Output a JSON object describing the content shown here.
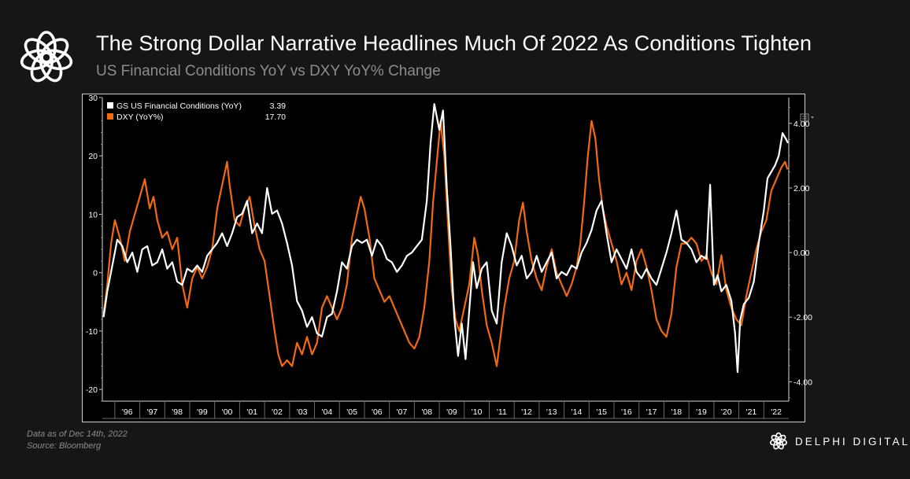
{
  "header": {
    "title": "The Strong Dollar Narrative Headlines Much Of 2022 As Conditions Tighten",
    "subtitle": "US Financial Conditions YoY vs DXY YoY% Change"
  },
  "footer": {
    "data_note": "Data as of Dec 14th, 2022",
    "source": "Source: Bloomberg",
    "brand": "DELPHI DIGITAL"
  },
  "icons": {
    "logo": "delphi-knot-logo-icon",
    "brand": "delphi-knot-logo-icon",
    "menu": "chart-menu-icon"
  },
  "colors": {
    "background": "#161616",
    "plot_background": "#000000",
    "fci": "#ffffff",
    "dxy": "#f26a10"
  },
  "chart_data": {
    "type": "line",
    "x_ticks": [
      "'96",
      "'97",
      "'98",
      "'99",
      "'00",
      "'01",
      "'02",
      "'03",
      "'04",
      "'05",
      "'06",
      "'07",
      "'08",
      "'09",
      "'10",
      "'11",
      "'12",
      "'13",
      "'14",
      "'15",
      "'16",
      "'17",
      "'18",
      "'19",
      "'20",
      "'21",
      "'22"
    ],
    "x_range": [
      1995.5,
      2023.0
    ],
    "y_left": {
      "ticks": [
        30,
        20,
        10,
        0,
        -10,
        -20
      ],
      "range": [
        -22,
        30
      ]
    },
    "y_right": {
      "ticks": [
        "4.00",
        "2.00",
        "0.00",
        "-2.00",
        "-4.00"
      ],
      "tick_values": [
        4,
        2,
        0,
        -2,
        -4
      ],
      "range": [
        -4.6,
        4.8
      ]
    },
    "legend": {
      "placement": "top-left",
      "entries": [
        {
          "label": "GS US Financial Conditions (YoY)",
          "value": "3.39",
          "color": "#ffffff"
        },
        {
          "label": "DXY (YoY%)",
          "value": "17.70",
          "color": "#f26a10"
        }
      ]
    },
    "series": [
      {
        "name": "DXY (YoY%)",
        "axis": "left",
        "color": "#f26a10",
        "points": [
          [
            1995.55,
            -7
          ],
          [
            1995.7,
            -2
          ],
          [
            1995.85,
            5
          ],
          [
            1996.0,
            9
          ],
          [
            1996.2,
            6
          ],
          [
            1996.4,
            2
          ],
          [
            1996.6,
            7
          ],
          [
            1996.8,
            10
          ],
          [
            1997.0,
            13
          ],
          [
            1997.2,
            16
          ],
          [
            1997.4,
            11
          ],
          [
            1997.55,
            13
          ],
          [
            1997.7,
            9
          ],
          [
            1997.9,
            6
          ],
          [
            1998.1,
            7
          ],
          [
            1998.3,
            4
          ],
          [
            1998.5,
            6
          ],
          [
            1998.7,
            -2
          ],
          [
            1998.9,
            -6
          ],
          [
            1999.1,
            -1
          ],
          [
            1999.3,
            1
          ],
          [
            1999.5,
            -1
          ],
          [
            1999.7,
            1
          ],
          [
            1999.9,
            4
          ],
          [
            2000.1,
            11
          ],
          [
            2000.3,
            15
          ],
          [
            2000.5,
            19
          ],
          [
            2000.6,
            15
          ],
          [
            2000.8,
            9
          ],
          [
            2001.0,
            8
          ],
          [
            2001.2,
            11
          ],
          [
            2001.4,
            13
          ],
          [
            2001.6,
            8
          ],
          [
            2001.8,
            4
          ],
          [
            2002.0,
            2
          ],
          [
            2002.2,
            -4
          ],
          [
            2002.4,
            -10
          ],
          [
            2002.55,
            -14
          ],
          [
            2002.7,
            -16
          ],
          [
            2002.9,
            -15
          ],
          [
            2003.1,
            -16
          ],
          [
            2003.3,
            -12
          ],
          [
            2003.5,
            -14
          ],
          [
            2003.7,
            -11
          ],
          [
            2003.9,
            -14
          ],
          [
            2004.1,
            -12
          ],
          [
            2004.3,
            -6
          ],
          [
            2004.5,
            -4
          ],
          [
            2004.7,
            -6
          ],
          [
            2004.9,
            -8
          ],
          [
            2005.1,
            -6
          ],
          [
            2005.3,
            -2
          ],
          [
            2005.5,
            6
          ],
          [
            2005.7,
            10
          ],
          [
            2005.85,
            13
          ],
          [
            2006.0,
            11
          ],
          [
            2006.2,
            6
          ],
          [
            2006.4,
            -1
          ],
          [
            2006.6,
            -3
          ],
          [
            2006.8,
            -5
          ],
          [
            2007.0,
            -4
          ],
          [
            2007.2,
            -6
          ],
          [
            2007.4,
            -8
          ],
          [
            2007.6,
            -10
          ],
          [
            2007.8,
            -12
          ],
          [
            2008.0,
            -13
          ],
          [
            2008.2,
            -11
          ],
          [
            2008.4,
            -6
          ],
          [
            2008.6,
            2
          ],
          [
            2008.75,
            12
          ],
          [
            2008.9,
            19
          ],
          [
            2009.05,
            26
          ],
          [
            2009.2,
            20
          ],
          [
            2009.35,
            8
          ],
          [
            2009.5,
            -3
          ],
          [
            2009.65,
            -8
          ],
          [
            2009.8,
            -10
          ],
          [
            2010.0,
            -6
          ],
          [
            2010.2,
            -2
          ],
          [
            2010.4,
            6
          ],
          [
            2010.55,
            3
          ],
          [
            2010.7,
            -3
          ],
          [
            2010.9,
            -9
          ],
          [
            2011.1,
            -12
          ],
          [
            2011.3,
            -16
          ],
          [
            2011.45,
            -11
          ],
          [
            2011.6,
            -6
          ],
          [
            2011.8,
            -1
          ],
          [
            2012.0,
            2
          ],
          [
            2012.2,
            9
          ],
          [
            2012.35,
            12
          ],
          [
            2012.5,
            7
          ],
          [
            2012.7,
            2
          ],
          [
            2012.9,
            -1
          ],
          [
            2013.1,
            -3
          ],
          [
            2013.3,
            1
          ],
          [
            2013.5,
            4
          ],
          [
            2013.7,
            0
          ],
          [
            2013.9,
            -2
          ],
          [
            2014.1,
            -4
          ],
          [
            2014.3,
            -2
          ],
          [
            2014.5,
            1
          ],
          [
            2014.65,
            5
          ],
          [
            2014.8,
            12
          ],
          [
            2014.95,
            20
          ],
          [
            2015.1,
            26
          ],
          [
            2015.25,
            23
          ],
          [
            2015.4,
            16
          ],
          [
            2015.55,
            11
          ],
          [
            2015.7,
            8
          ],
          [
            2015.9,
            5
          ],
          [
            2016.1,
            2
          ],
          [
            2016.3,
            -2
          ],
          [
            2016.5,
            0
          ],
          [
            2016.7,
            -3
          ],
          [
            2016.9,
            2
          ],
          [
            2017.1,
            4
          ],
          [
            2017.3,
            1
          ],
          [
            2017.5,
            -3
          ],
          [
            2017.7,
            -8
          ],
          [
            2017.9,
            -10
          ],
          [
            2018.1,
            -11
          ],
          [
            2018.3,
            -7
          ],
          [
            2018.5,
            1
          ],
          [
            2018.7,
            5
          ],
          [
            2018.9,
            5
          ],
          [
            2019.1,
            6
          ],
          [
            2019.3,
            5
          ],
          [
            2019.5,
            2
          ],
          [
            2019.7,
            3
          ],
          [
            2019.9,
            0
          ],
          [
            2020.1,
            -2
          ],
          [
            2020.3,
            3
          ],
          [
            2020.5,
            -3
          ],
          [
            2020.7,
            -6
          ],
          [
            2020.9,
            -8
          ],
          [
            2021.1,
            -9
          ],
          [
            2021.3,
            -4
          ],
          [
            2021.5,
            0
          ],
          [
            2021.7,
            4
          ],
          [
            2021.9,
            7
          ],
          [
            2022.1,
            9
          ],
          [
            2022.3,
            14
          ],
          [
            2022.5,
            16
          ],
          [
            2022.7,
            18
          ],
          [
            2022.85,
            19
          ],
          [
            2022.95,
            17.7
          ]
        ]
      },
      {
        "name": "GS US Financial Conditions (YoY)",
        "axis": "right",
        "color": "#ffffff",
        "points": [
          [
            1995.55,
            -2.0
          ],
          [
            1995.7,
            -1.2
          ],
          [
            1995.9,
            -0.4
          ],
          [
            1996.1,
            0.4
          ],
          [
            1996.3,
            0.2
          ],
          [
            1996.5,
            -0.3
          ],
          [
            1996.7,
            0.0
          ],
          [
            1996.9,
            -0.6
          ],
          [
            1997.1,
            0.1
          ],
          [
            1997.3,
            0.2
          ],
          [
            1997.5,
            -0.4
          ],
          [
            1997.7,
            -0.3
          ],
          [
            1997.9,
            0.1
          ],
          [
            1998.1,
            -0.5
          ],
          [
            1998.3,
            -0.3
          ],
          [
            1998.5,
            -0.9
          ],
          [
            1998.7,
            -1.0
          ],
          [
            1998.9,
            -0.5
          ],
          [
            1999.1,
            -0.6
          ],
          [
            1999.3,
            -0.4
          ],
          [
            1999.5,
            -0.6
          ],
          [
            1999.7,
            -0.1
          ],
          [
            1999.9,
            0.1
          ],
          [
            2000.1,
            0.3
          ],
          [
            2000.3,
            0.6
          ],
          [
            2000.5,
            0.2
          ],
          [
            2000.7,
            0.6
          ],
          [
            2000.9,
            1.1
          ],
          [
            2001.1,
            1.2
          ],
          [
            2001.3,
            1.6
          ],
          [
            2001.5,
            0.6
          ],
          [
            2001.7,
            0.9
          ],
          [
            2001.9,
            0.6
          ],
          [
            2002.1,
            2.0
          ],
          [
            2002.3,
            1.2
          ],
          [
            2002.5,
            1.3
          ],
          [
            2002.7,
            0.9
          ],
          [
            2002.9,
            0.3
          ],
          [
            2003.1,
            -0.4
          ],
          [
            2003.3,
            -1.5
          ],
          [
            2003.5,
            -1.8
          ],
          [
            2003.7,
            -2.3
          ],
          [
            2003.9,
            -2.0
          ],
          [
            2004.1,
            -2.5
          ],
          [
            2004.3,
            -2.6
          ],
          [
            2004.5,
            -2.0
          ],
          [
            2004.7,
            -1.9
          ],
          [
            2004.9,
            -1.2
          ],
          [
            2005.1,
            -0.3
          ],
          [
            2005.3,
            -0.5
          ],
          [
            2005.5,
            0.2
          ],
          [
            2005.7,
            0.4
          ],
          [
            2005.9,
            0.3
          ],
          [
            2006.1,
            0.4
          ],
          [
            2006.3,
            -0.1
          ],
          [
            2006.5,
            0.4
          ],
          [
            2006.7,
            0.2
          ],
          [
            2006.9,
            -0.2
          ],
          [
            2007.1,
            -0.3
          ],
          [
            2007.3,
            -0.6
          ],
          [
            2007.5,
            -0.4
          ],
          [
            2007.7,
            -0.1
          ],
          [
            2007.9,
            0.0
          ],
          [
            2008.1,
            0.2
          ],
          [
            2008.3,
            0.4
          ],
          [
            2008.5,
            1.6
          ],
          [
            2008.65,
            3.4
          ],
          [
            2008.8,
            4.6
          ],
          [
            2009.0,
            3.8
          ],
          [
            2009.15,
            4.4
          ],
          [
            2009.3,
            2.0
          ],
          [
            2009.45,
            0.2
          ],
          [
            2009.6,
            -2.0
          ],
          [
            2009.75,
            -3.2
          ],
          [
            2009.9,
            -2.2
          ],
          [
            2010.05,
            -3.3
          ],
          [
            2010.2,
            -1.8
          ],
          [
            2010.35,
            -0.3
          ],
          [
            2010.5,
            -1.1
          ],
          [
            2010.7,
            -0.5
          ],
          [
            2010.9,
            -0.3
          ],
          [
            2011.1,
            -1.8
          ],
          [
            2011.3,
            -2.2
          ],
          [
            2011.5,
            -0.3
          ],
          [
            2011.7,
            0.6
          ],
          [
            2011.9,
            0.2
          ],
          [
            2012.1,
            -0.4
          ],
          [
            2012.3,
            -0.1
          ],
          [
            2012.5,
            -0.8
          ],
          [
            2012.7,
            -0.6
          ],
          [
            2012.9,
            -0.1
          ],
          [
            2013.1,
            -0.6
          ],
          [
            2013.3,
            -0.3
          ],
          [
            2013.5,
            0.0
          ],
          [
            2013.7,
            -0.8
          ],
          [
            2013.9,
            -0.6
          ],
          [
            2014.1,
            -0.7
          ],
          [
            2014.3,
            -0.4
          ],
          [
            2014.5,
            -0.5
          ],
          [
            2014.7,
            0.0
          ],
          [
            2014.9,
            0.3
          ],
          [
            2015.1,
            0.7
          ],
          [
            2015.3,
            1.3
          ],
          [
            2015.5,
            1.6
          ],
          [
            2015.7,
            0.6
          ],
          [
            2015.9,
            -0.3
          ],
          [
            2016.1,
            0.1
          ],
          [
            2016.3,
            -0.2
          ],
          [
            2016.5,
            -0.5
          ],
          [
            2016.7,
            0.1
          ],
          [
            2016.9,
            -0.6
          ],
          [
            2017.1,
            -0.8
          ],
          [
            2017.3,
            -0.5
          ],
          [
            2017.5,
            -0.8
          ],
          [
            2017.7,
            -1.0
          ],
          [
            2017.9,
            -0.5
          ],
          [
            2018.1,
            0.0
          ],
          [
            2018.3,
            0.6
          ],
          [
            2018.5,
            1.3
          ],
          [
            2018.7,
            0.4
          ],
          [
            2018.9,
            0.3
          ],
          [
            2019.1,
            0.1
          ],
          [
            2019.3,
            -0.3
          ],
          [
            2019.5,
            -0.1
          ],
          [
            2019.7,
            -0.2
          ],
          [
            2019.85,
            2.1
          ],
          [
            2020.0,
            -1.0
          ],
          [
            2020.15,
            -0.7
          ],
          [
            2020.3,
            -1.2
          ],
          [
            2020.5,
            -1.0
          ],
          [
            2020.7,
            -1.5
          ],
          [
            2020.85,
            -2.5
          ],
          [
            2020.95,
            -3.7
          ],
          [
            2021.05,
            -2.1
          ],
          [
            2021.2,
            -1.6
          ],
          [
            2021.4,
            -1.4
          ],
          [
            2021.6,
            -0.9
          ],
          [
            2021.8,
            0.3
          ],
          [
            2022.0,
            1.3
          ],
          [
            2022.15,
            2.3
          ],
          [
            2022.3,
            2.5
          ],
          [
            2022.45,
            2.7
          ],
          [
            2022.6,
            3.0
          ],
          [
            2022.75,
            3.7
          ],
          [
            2022.9,
            3.5
          ],
          [
            2022.97,
            3.39
          ]
        ]
      }
    ]
  }
}
